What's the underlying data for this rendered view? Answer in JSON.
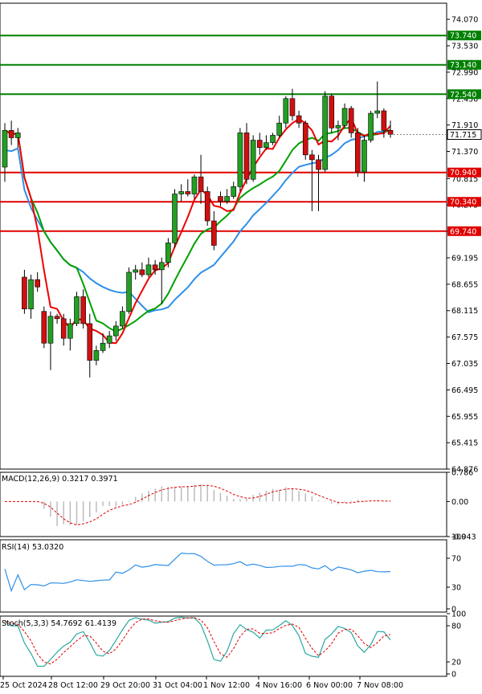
{
  "chart_data": {
    "type": "candlestick",
    "main": {
      "ylim": [
        64.876,
        74.4
      ],
      "y_ticks": [
        "74.070",
        "73.530",
        "72.990",
        "72.450",
        "71.910",
        "71.370",
        "70.815",
        "70.275",
        "69.735",
        "69.195",
        "68.655",
        "68.115",
        "67.575",
        "67.035",
        "66.495",
        "65.955",
        "65.415",
        "64.876"
      ],
      "x_labels": [
        "25 Oct 2024",
        "28 Oct 12:00",
        "29 Oct 20:00",
        "31 Oct 04:00",
        "1 Nov 12:00",
        "4 Nov 16:00",
        "6 Nov 00:00",
        "7 Nov 08:00"
      ],
      "resistance_lines": [
        {
          "label": "73.740",
          "value": 73.74,
          "color": "#008000"
        },
        {
          "label": "73.140",
          "value": 73.14,
          "color": "#008000"
        },
        {
          "label": "72.540",
          "value": 72.54,
          "color": "#008000"
        }
      ],
      "support_lines": [
        {
          "label": "70.940",
          "value": 70.94,
          "color": "#e00000"
        },
        {
          "label": "70.340",
          "value": 70.34,
          "color": "#e00000"
        },
        {
          "label": "69.740",
          "value": 69.74,
          "color": "#e00000"
        }
      ],
      "current_price": {
        "label": "71.715",
        "value": 71.715
      },
      "candles": [
        [
          71.05,
          71.95,
          70.75,
          71.8
        ],
        [
          71.8,
          72.0,
          71.5,
          71.65
        ],
        [
          71.65,
          71.85,
          71.45,
          71.75
        ],
        [
          68.8,
          68.95,
          68.05,
          68.15
        ],
        [
          68.15,
          68.85,
          67.95,
          68.75
        ],
        [
          68.75,
          68.9,
          68.5,
          68.6
        ],
        [
          68.1,
          68.2,
          67.35,
          67.45
        ],
        [
          67.45,
          68.1,
          66.9,
          68.0
        ],
        [
          68.0,
          68.05,
          67.85,
          67.95
        ],
        [
          67.95,
          68.05,
          67.4,
          67.55
        ],
        [
          67.55,
          67.95,
          67.3,
          67.85
        ],
        [
          67.85,
          68.5,
          67.8,
          68.4
        ],
        [
          68.4,
          68.55,
          67.75,
          67.85
        ],
        [
          67.85,
          68.05,
          66.75,
          67.1
        ],
        [
          67.1,
          67.4,
          67.0,
          67.3
        ],
        [
          67.3,
          67.65,
          67.25,
          67.45
        ],
        [
          67.45,
          67.7,
          67.35,
          67.6
        ],
        [
          67.6,
          67.9,
          67.5,
          67.8
        ],
        [
          67.8,
          68.2,
          67.75,
          68.1
        ],
        [
          68.1,
          69.0,
          68.05,
          68.9
        ],
        [
          68.9,
          69.05,
          68.75,
          68.95
        ],
        [
          68.95,
          69.1,
          68.8,
          68.85
        ],
        [
          68.85,
          69.2,
          68.8,
          69.05
        ],
        [
          69.05,
          69.15,
          68.85,
          68.95
        ],
        [
          68.95,
          69.2,
          68.25,
          69.1
        ],
        [
          69.1,
          69.6,
          69.0,
          69.5
        ],
        [
          69.5,
          70.6,
          69.4,
          70.5
        ],
        [
          70.5,
          70.7,
          70.35,
          70.55
        ],
        [
          70.55,
          70.8,
          70.45,
          70.5
        ],
        [
          70.5,
          70.9,
          70.4,
          70.85
        ],
        [
          70.85,
          71.3,
          70.3,
          70.55
        ],
        [
          70.55,
          70.65,
          69.85,
          69.95
        ],
        [
          69.95,
          70.15,
          69.35,
          69.45
        ],
        [
          70.45,
          70.55,
          70.25,
          70.35
        ],
        [
          70.35,
          70.6,
          70.3,
          70.45
        ],
        [
          70.45,
          70.75,
          70.4,
          70.65
        ],
        [
          70.65,
          71.85,
          70.55,
          71.75
        ],
        [
          71.75,
          71.95,
          70.7,
          70.8
        ],
        [
          70.8,
          71.7,
          70.75,
          71.6
        ],
        [
          71.6,
          71.75,
          71.3,
          71.45
        ],
        [
          71.45,
          71.7,
          71.4,
          71.55
        ],
        [
          71.55,
          71.75,
          71.5,
          71.7
        ],
        [
          71.7,
          72.1,
          71.65,
          71.95
        ],
        [
          71.95,
          72.5,
          71.85,
          72.45
        ],
        [
          72.45,
          72.65,
          72.0,
          72.1
        ],
        [
          72.1,
          72.2,
          71.85,
          71.95
        ],
        [
          71.95,
          72.0,
          71.2,
          71.3
        ],
        [
          71.3,
          71.4,
          70.15,
          71.2
        ],
        [
          71.2,
          71.3,
          70.15,
          71.0
        ],
        [
          71.0,
          72.6,
          70.95,
          72.5
        ],
        [
          72.5,
          72.55,
          71.75,
          71.85
        ],
        [
          71.85,
          72.0,
          71.6,
          71.9
        ],
        [
          71.9,
          72.35,
          71.85,
          72.25
        ],
        [
          72.25,
          72.3,
          71.65,
          71.75
        ],
        [
          71.75,
          71.85,
          70.85,
          70.95
        ],
        [
          70.95,
          71.7,
          70.75,
          71.6
        ],
        [
          71.6,
          72.2,
          71.55,
          72.15
        ],
        [
          72.15,
          72.8,
          72.05,
          72.2
        ],
        [
          72.2,
          72.25,
          71.65,
          71.8
        ],
        [
          71.8,
          72.0,
          71.65,
          71.72
        ]
      ],
      "indicators": [
        {
          "name": "MA red",
          "color": "#ee0000"
        },
        {
          "name": "MA green",
          "color": "#00a000"
        },
        {
          "name": "MA blue",
          "color": "#2f8fe8"
        }
      ]
    },
    "macd": {
      "title": "MACD(12,26,9) 0.3217 0.3971",
      "ylim": [
        -0.943,
        0.786
      ],
      "y_ticks": [
        "0.786",
        "0.00",
        "-0.943"
      ]
    },
    "rsi": {
      "title": "RSI(14) 53.0320",
      "ylim": [
        0,
        100
      ],
      "y_ticks": [
        "100",
        "70",
        "30",
        "0"
      ]
    },
    "stoch": {
      "title": "Stoch(5,3,3) 54.7692 61.4139",
      "ylim": [
        0,
        100
      ],
      "y_ticks": [
        "100",
        "80",
        "20",
        "0"
      ]
    }
  }
}
